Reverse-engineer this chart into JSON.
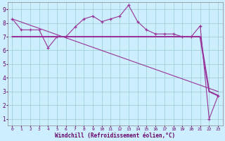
{
  "xlabel": "Windchill (Refroidissement éolien,°C)",
  "bg_color": "#cceeff",
  "line_color": "#993399",
  "xlim": [
    -0.5,
    23.5
  ],
  "ylim": [
    0.5,
    9.5
  ],
  "xticks": [
    0,
    1,
    2,
    3,
    4,
    5,
    6,
    7,
    8,
    9,
    10,
    11,
    12,
    13,
    14,
    15,
    16,
    17,
    18,
    19,
    20,
    21,
    22,
    23
  ],
  "yticks": [
    1,
    2,
    3,
    4,
    5,
    6,
    7,
    8,
    9
  ],
  "series1_x": [
    0,
    1,
    2,
    3,
    4,
    5,
    6,
    7,
    8,
    9,
    10,
    11,
    12,
    13,
    14,
    15,
    16,
    17,
    18,
    19,
    20,
    21,
    22,
    23
  ],
  "series1_y": [
    8.3,
    7.5,
    7.5,
    7.5,
    6.2,
    7.0,
    7.0,
    7.7,
    8.3,
    8.5,
    8.1,
    8.3,
    8.5,
    9.3,
    8.1,
    7.5,
    7.2,
    7.2,
    7.2,
    7.0,
    7.0,
    7.8,
    1.0,
    2.7
  ],
  "series2_x": [
    0,
    1,
    2,
    3,
    4,
    5,
    6,
    7,
    8,
    9,
    10,
    11,
    12,
    13,
    14,
    15,
    16,
    17,
    18,
    19,
    20,
    21,
    22,
    23
  ],
  "series2_y": [
    7.0,
    7.0,
    7.0,
    7.0,
    7.0,
    7.0,
    7.0,
    7.0,
    7.0,
    7.0,
    7.0,
    7.0,
    7.0,
    7.0,
    7.0,
    7.0,
    7.0,
    7.0,
    7.0,
    7.0,
    7.0,
    7.0,
    3.0,
    2.7
  ],
  "series3_x": [
    0,
    23
  ],
  "series3_y": [
    8.3,
    3.0
  ],
  "grid_color": "#99cccc",
  "xlabel_color": "#660066",
  "tick_color": "#660066",
  "spine_color": "#888888"
}
